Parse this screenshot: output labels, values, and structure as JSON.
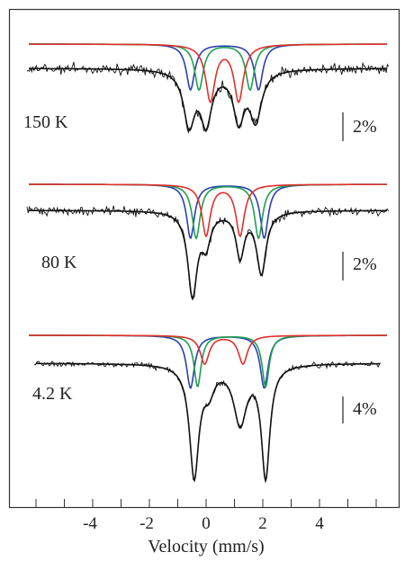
{
  "chart_data": {
    "type": "line",
    "xlabel": "Velocity (mm/s)",
    "xlim": [
      -6.5,
      6.5
    ],
    "x_ticks": [
      -4,
      -2,
      0,
      2,
      4
    ],
    "x_tick_labels": [
      "-4",
      "-2",
      "0",
      "2",
      "4"
    ],
    "colors": {
      "data": "#111111",
      "fit": "#111111",
      "site_blue": "#2b3fb0",
      "site_green": "#1f9e50",
      "site_red": "#e0302b",
      "frame": "#333333"
    },
    "spectra": [
      {
        "temperature_label": "150 K",
        "scale_label": "2%",
        "scale_fraction": 0.02,
        "components": [
          {
            "color": "blue",
            "lines_mm_s": [
              -0.55,
              1.85
            ],
            "depth": 0.65,
            "width": 0.36
          },
          {
            "color": "green",
            "lines_mm_s": [
              -0.25,
              1.55
            ],
            "depth": 0.65,
            "width": 0.36
          },
          {
            "color": "red",
            "lines_mm_s": [
              0.15,
              1.15
            ],
            "depth": 0.8,
            "width": 0.4
          }
        ],
        "fit_dips": [
          {
            "x": -0.6,
            "depth": 1.15,
            "width": 0.48
          },
          {
            "x": 0.0,
            "depth": 1.1,
            "width": 0.48
          },
          {
            "x": 1.15,
            "depth": 1.05,
            "width": 0.46
          },
          {
            "x": 1.75,
            "depth": 1.05,
            "width": 0.5
          }
        ]
      },
      {
        "temperature_label": "80 K",
        "scale_label": "2%",
        "scale_fraction": 0.02,
        "components": [
          {
            "color": "blue",
            "lines_mm_s": [
              -0.55,
              2.05
            ],
            "depth": 0.92,
            "width": 0.34
          },
          {
            "color": "green",
            "lines_mm_s": [
              -0.35,
              1.85
            ],
            "depth": 0.92,
            "width": 0.34
          },
          {
            "color": "red",
            "lines_mm_s": [
              0.0,
              1.2
            ],
            "depth": 0.87,
            "width": 0.36
          }
        ],
        "fit_dips": [
          {
            "x": -0.48,
            "depth": 1.55,
            "width": 0.4
          },
          {
            "x": 0.0,
            "depth": 0.55,
            "width": 0.38
          },
          {
            "x": 1.2,
            "depth": 0.82,
            "width": 0.35
          },
          {
            "x": 1.95,
            "depth": 1.15,
            "width": 0.4
          }
        ]
      },
      {
        "temperature_label": "4.2 K",
        "scale_label": "4%",
        "scale_fraction": 0.04,
        "components": [
          {
            "color": "blue",
            "lines_mm_s": [
              -0.55,
              2.05
            ],
            "depth": 0.78,
            "width": 0.34
          },
          {
            "color": "green",
            "lines_mm_s": [
              -0.3,
              2.1
            ],
            "depth": 0.76,
            "width": 0.3
          },
          {
            "color": "red",
            "lines_mm_s": [
              -0.05,
              1.3
            ],
            "depth": 0.42,
            "width": 0.38
          }
        ],
        "fit_dips": [
          {
            "x": -0.42,
            "depth": 1.0,
            "width": 0.4
          },
          {
            "x": 0.1,
            "depth": 0.2,
            "width": 0.45
          },
          {
            "x": 1.2,
            "depth": 0.52,
            "width": 0.55
          },
          {
            "x": 2.1,
            "depth": 1.0,
            "width": 0.36
          }
        ]
      }
    ]
  }
}
